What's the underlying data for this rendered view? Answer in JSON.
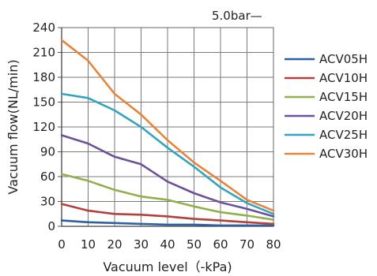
{
  "chart_data": {
    "type": "line",
    "title": "",
    "xlabel": "Vacuum level（-kPa)",
    "ylabel": "Vacuum flow(NL/min)",
    "annotation": "5.0bar—",
    "x": [
      0,
      10,
      20,
      30,
      40,
      50,
      60,
      70,
      80
    ],
    "xlim": [
      0,
      80
    ],
    "ylim": [
      0,
      240
    ],
    "xticks": [
      0,
      10,
      20,
      30,
      40,
      50,
      60,
      70,
      80
    ],
    "yticks": [
      0,
      30,
      60,
      90,
      120,
      150,
      180,
      210,
      240
    ],
    "grid": true,
    "legend_position": "right",
    "series": [
      {
        "name": "ACV05H",
        "color": "#2f5fa0",
        "values": [
          7,
          5,
          4,
          3,
          2,
          2,
          1,
          1,
          1
        ]
      },
      {
        "name": "ACV10H",
        "color": "#b5403a",
        "values": [
          27,
          19,
          15,
          14,
          12,
          9,
          7,
          5,
          3
        ]
      },
      {
        "name": "ACV15H",
        "color": "#8fb04b",
        "values": [
          63,
          55,
          44,
          36,
          32,
          24,
          17,
          13,
          8
        ]
      },
      {
        "name": "ACV20H",
        "color": "#6e4f9a",
        "values": [
          110,
          100,
          84,
          75,
          54,
          40,
          29,
          21,
          12
        ]
      },
      {
        "name": "ACV25H",
        "color": "#33a4bf",
        "values": [
          160,
          155,
          140,
          120,
          95,
          72,
          47,
          28,
          15
        ]
      },
      {
        "name": "ACV30H",
        "color": "#e6853a",
        "values": [
          225,
          200,
          160,
          135,
          104,
          77,
          55,
          32,
          19
        ]
      }
    ]
  }
}
